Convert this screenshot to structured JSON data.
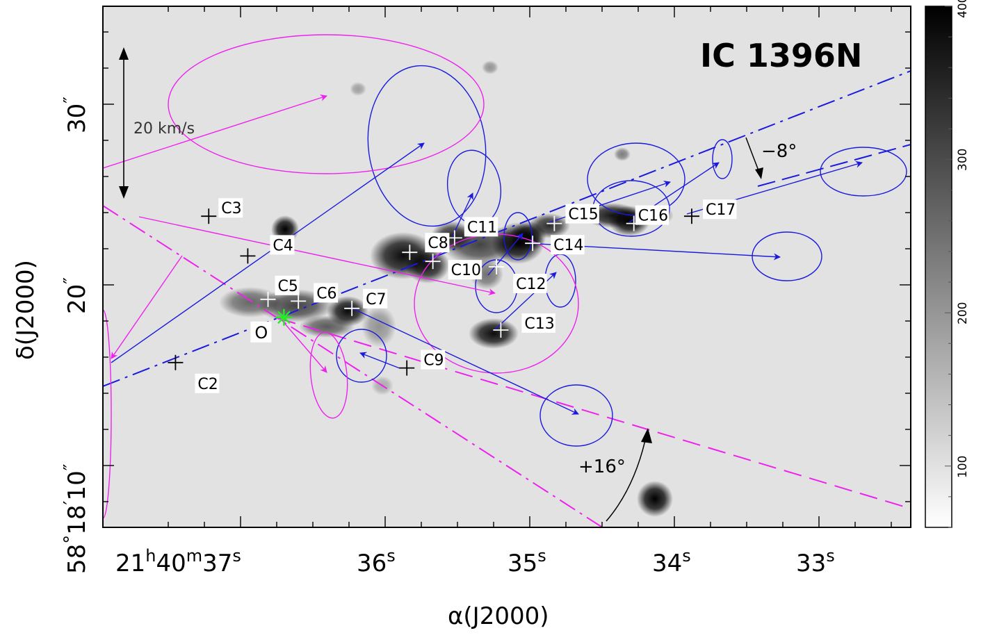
{
  "chart_data": {
    "type": "image",
    "title": "IC 1396N",
    "xlabel": "α(J2000)",
    "ylabel": "δ(J2000)",
    "x_ticks": [
      {
        "label": "21h40m37s",
        "value": "21:40:37"
      },
      {
        "label": "36s",
        "value": "21:40:36"
      },
      {
        "label": "35s",
        "value": "21:40:35"
      },
      {
        "label": "34s",
        "value": "21:40:34"
      },
      {
        "label": "33s",
        "value": "21:40:33"
      }
    ],
    "y_ticks": [
      {
        "label": "58°18′10″",
        "value": "+58:18:10"
      },
      {
        "label": "20″",
        "value": "+58:18:20"
      },
      {
        "label": "30″",
        "value": "+58:18:30"
      }
    ],
    "xlim": [
      "21:40:37.5",
      "21:40:32.3"
    ],
    "ylim": [
      "+58:18:06.7",
      "+58:18:34.5"
    ],
    "colorbar": {
      "ticks": [
        100,
        200,
        300,
        400
      ],
      "range": [
        60,
        400
      ],
      "colormap": "grey-inverted"
    },
    "velocity_scale_label": "20 km/s",
    "origin": {
      "label": "O",
      "ra_s": 36.7,
      "dec_s": 18.2,
      "color": "#22ee22"
    },
    "cores": [
      {
        "name": "C2",
        "ra_s": 37.45,
        "dec_s": 15.7,
        "cross": "black"
      },
      {
        "name": "C3",
        "ra_s": 37.22,
        "dec_s": 23.8,
        "cross": "black"
      },
      {
        "name": "C4",
        "ra_s": 36.95,
        "dec_s": 21.6,
        "cross": "black"
      },
      {
        "name": "C5",
        "ra_s": 36.81,
        "dec_s": 19.2,
        "cross": "white"
      },
      {
        "name": "C6",
        "ra_s": 36.6,
        "dec_s": 19.1,
        "cross": "white"
      },
      {
        "name": "C7",
        "ra_s": 36.23,
        "dec_s": 18.7,
        "cross": "white"
      },
      {
        "name": "C8",
        "ra_s": 35.83,
        "dec_s": 21.8,
        "cross": "white"
      },
      {
        "name": "C9",
        "ra_s": 35.85,
        "dec_s": 15.4,
        "cross": "black"
      },
      {
        "name": "C10",
        "ra_s": 35.67,
        "dec_s": 21.3,
        "cross": "white"
      },
      {
        "name": "C11",
        "ra_s": 35.52,
        "dec_s": 22.6,
        "cross": "white"
      },
      {
        "name": "C12",
        "ra_s": 35.23,
        "dec_s": 21.0,
        "cross": "white"
      },
      {
        "name": "C13",
        "ra_s": 35.2,
        "dec_s": 17.5,
        "cross": "white"
      },
      {
        "name": "C14",
        "ra_s": 34.98,
        "dec_s": 22.3,
        "cross": "white"
      },
      {
        "name": "C15",
        "ra_s": 34.83,
        "dec_s": 23.4,
        "cross": "white"
      },
      {
        "name": "C16",
        "ra_s": 34.28,
        "dec_s": 23.4,
        "cross": "white"
      },
      {
        "name": "C17",
        "ra_s": 33.88,
        "dec_s": 23.8,
        "cross": "black"
      }
    ],
    "angle_labels": [
      "−8°",
      "+16°"
    ],
    "colors": {
      "blue": "#1a1add",
      "magenta": "#ee22ee",
      "frame": "#000000"
    }
  }
}
